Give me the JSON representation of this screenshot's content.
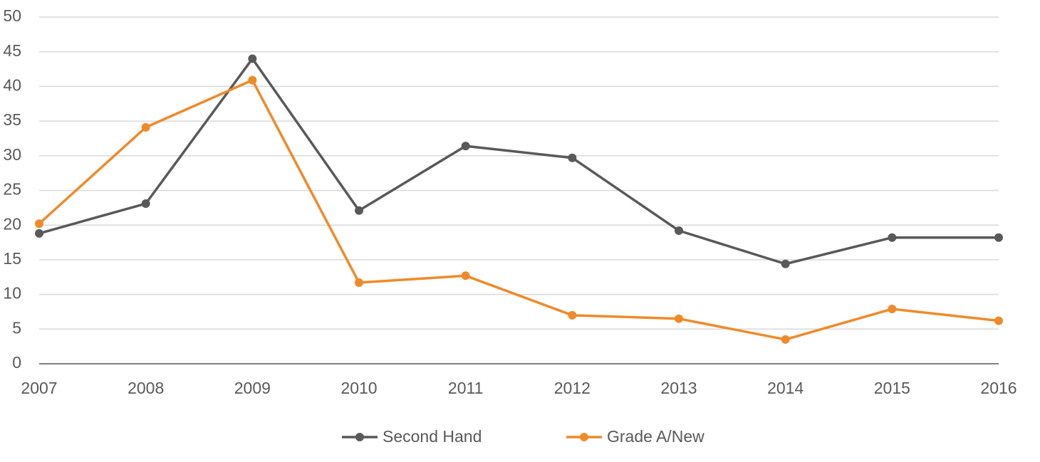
{
  "chart_data": {
    "type": "line",
    "categories": [
      "2007",
      "2008",
      "2009",
      "2010",
      "2011",
      "2012",
      "2013",
      "2014",
      "2015",
      "2016"
    ],
    "series": [
      {
        "name": "Second Hand",
        "color": "#595959",
        "values": [
          18.8,
          23.1,
          44.0,
          22.1,
          31.4,
          29.7,
          19.2,
          14.4,
          18.2,
          18.2
        ]
      },
      {
        "name": "Grade A/New",
        "color": "#ef8a2a",
        "values": [
          20.2,
          34.1,
          40.9,
          11.7,
          12.7,
          7.0,
          6.5,
          3.5,
          7.9,
          6.2
        ]
      }
    ],
    "ylim": [
      0,
      50
    ],
    "yticks": [
      0,
      5,
      10,
      15,
      20,
      25,
      30,
      35,
      40,
      45,
      50
    ],
    "grid": true,
    "legend": "bottom"
  }
}
